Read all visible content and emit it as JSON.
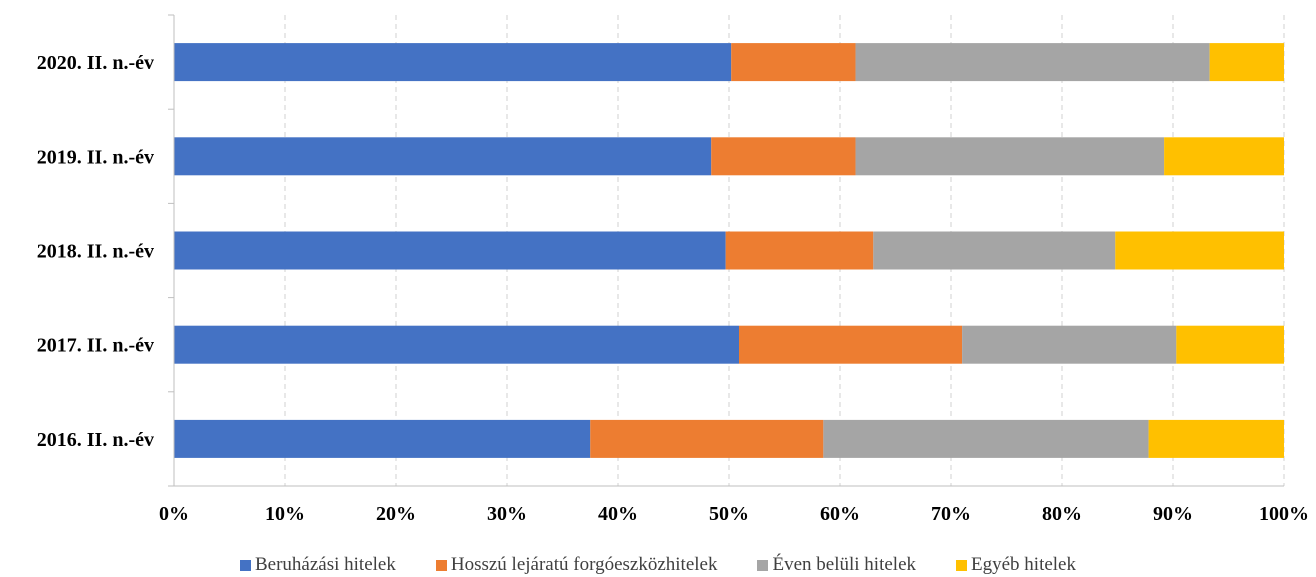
{
  "chart_data": {
    "type": "bar",
    "orientation": "horizontal",
    "stacked": "percent",
    "categories": [
      "2020. II. n.-év",
      "2019. II. n.-év",
      "2018. II. n.-év",
      "2017. II. n.-év",
      "2016. II. n.-év"
    ],
    "series": [
      {
        "name": "Beruházási hitelek",
        "color": "#4472c4",
        "values": [
          50.2,
          48.4,
          49.7,
          50.9,
          37.5
        ]
      },
      {
        "name": "Hosszú lejáratú forgóeszközhitelek",
        "color": "#ed7d31",
        "values": [
          11.2,
          13.0,
          13.3,
          20.1,
          21.0
        ]
      },
      {
        "name": "Éven belüli hitelek",
        "color": "#a5a5a5",
        "values": [
          31.9,
          27.8,
          21.8,
          19.3,
          29.3
        ]
      },
      {
        "name": "Egyéb hitelek",
        "color": "#ffc000",
        "values": [
          6.7,
          10.8,
          15.2,
          9.7,
          12.2
        ]
      }
    ],
    "x_ticks": [
      "0%",
      "10%",
      "20%",
      "30%",
      "40%",
      "50%",
      "60%",
      "70%",
      "80%",
      "90%",
      "100%"
    ],
    "xlim": [
      0,
      100
    ],
    "grid": "vertical dashed",
    "legend_position": "bottom",
    "title": "",
    "xlabel": "",
    "ylabel": ""
  }
}
